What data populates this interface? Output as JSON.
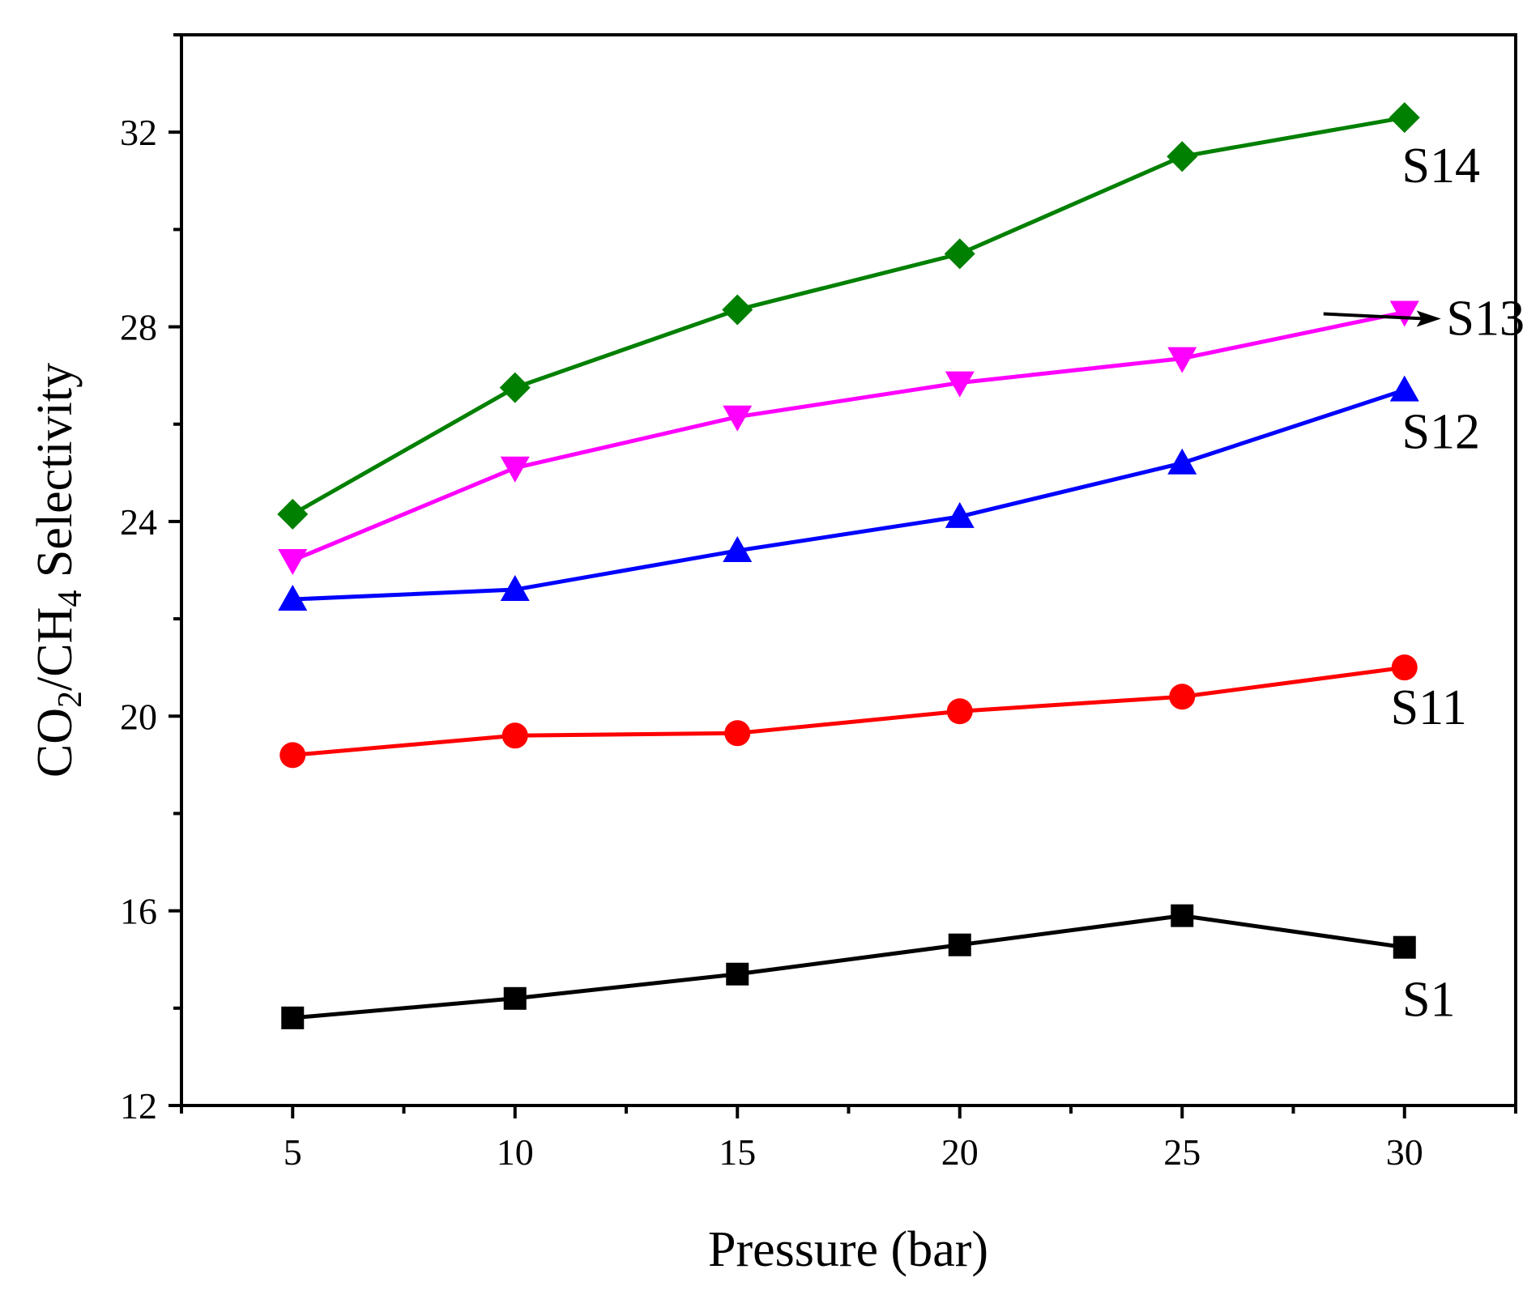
{
  "chart_data": {
    "type": "line",
    "title": "",
    "xlabel": "Pressure (bar)",
    "ylabel": {
      "parts": [
        {
          "text": "CO",
          "sub": false
        },
        {
          "text": "2",
          "sub": true
        },
        {
          "text": "/CH",
          "sub": false
        },
        {
          "text": "4",
          "sub": true
        },
        {
          "text": " Selectivity",
          "sub": false
        }
      ]
    },
    "xlim": [
      2.5,
      32.5
    ],
    "ylim": [
      12,
      34
    ],
    "x_ticks": [
      5,
      10,
      15,
      20,
      25,
      30
    ],
    "y_ticks": [
      12,
      16,
      20,
      24,
      28,
      32
    ],
    "x": [
      5,
      10,
      15,
      20,
      25,
      30
    ],
    "grid": false,
    "series": [
      {
        "name": "S1",
        "color": "#000000",
        "marker": "square",
        "values": [
          13.8,
          14.2,
          14.7,
          15.3,
          15.9,
          15.25
        ]
      },
      {
        "name": "S11",
        "color": "#ff0000",
        "marker": "circle",
        "values": [
          19.2,
          19.6,
          19.65,
          20.1,
          20.4,
          21.0
        ]
      },
      {
        "name": "S12",
        "color": "#0000ff",
        "marker": "triangle-up",
        "values": [
          22.4,
          22.6,
          23.4,
          24.1,
          25.2,
          26.7
        ]
      },
      {
        "name": "S13",
        "color": "#ff00ff",
        "marker": "triangle-down",
        "values": [
          23.2,
          25.1,
          26.15,
          26.85,
          27.35,
          28.3
        ]
      },
      {
        "name": "S14",
        "color": "#008000",
        "marker": "diamond",
        "values": [
          24.15,
          26.75,
          28.35,
          29.5,
          31.5,
          32.3
        ]
      }
    ],
    "annotations": [
      {
        "series": "S14",
        "text": "S14"
      },
      {
        "series": "S13",
        "text": "S13",
        "arrow": true
      },
      {
        "series": "S12",
        "text": "S12"
      },
      {
        "series": "S11",
        "text": "S11"
      },
      {
        "series": "S1",
        "text": "S1"
      }
    ]
  }
}
